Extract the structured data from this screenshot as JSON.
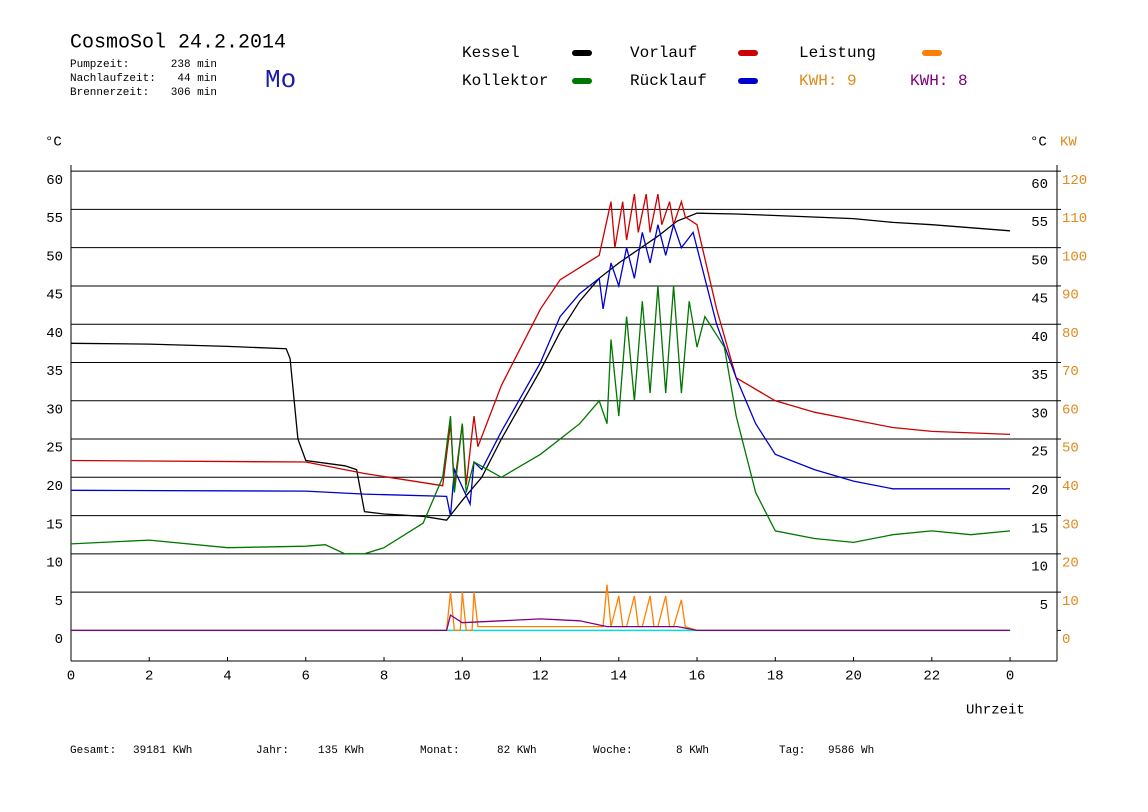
{
  "chart_data": {
    "type": "line",
    "title": "CosmoSol 24.2.2014",
    "day": "Mo",
    "stats": [
      {
        "label": "Pumpzeit:",
        "value": "238 min"
      },
      {
        "label": "Nachlaufzeit:",
        "value": "44 min"
      },
      {
        "label": "Brennerzeit:",
        "value": "306 min"
      }
    ],
    "kwh_labels": [
      {
        "text": "KWH: 9",
        "color": "#e08a1e"
      },
      {
        "text": "KWH: 8",
        "color": "#800080"
      }
    ],
    "y_unit": "°C",
    "y2_unit_c": "°C",
    "y2_unit": "KW",
    "x_label": "Uhrzeit",
    "totals": [
      {
        "label": "Gesamt:",
        "value": "39181 KWh"
      },
      {
        "label": "Jahr:",
        "value": "135 KWh"
      },
      {
        "label": "Monat:",
        "value": "82 KWh"
      },
      {
        "label": "Woche:",
        "value": "8 KWh"
      },
      {
        "label": "Tag:",
        "value": "9586 Wh"
      }
    ],
    "xlim": [
      0,
      25.2
    ],
    "xticks": [
      0,
      2,
      4,
      6,
      8,
      10,
      12,
      14,
      16,
      18,
      20,
      22,
      {
        "value": 24,
        "label": "0"
      }
    ],
    "ylim": [
      -4,
      60.8
    ],
    "yticks": [
      0,
      5,
      10,
      15,
      20,
      25,
      30,
      35,
      40,
      45,
      50,
      55,
      60
    ],
    "y2lim": [
      -8,
      121.6
    ],
    "y2ticks": [
      0,
      10,
      20,
      30,
      40,
      50,
      60,
      70,
      80,
      90,
      100,
      110,
      120
    ],
    "grid": true,
    "series": [
      {
        "name": "Kessel",
        "color": "#000000",
        "x": [
          0,
          2,
          4,
          5.5,
          5.6,
          5.8,
          6,
          7,
          7.3,
          7.5,
          8,
          9,
          9.6,
          10,
          10.5,
          11,
          12,
          12.5,
          13,
          13.5,
          14,
          15,
          15.5,
          16,
          17,
          18,
          20,
          21,
          22,
          24
        ],
        "values": [
          37.5,
          37.4,
          37.1,
          36.8,
          35.5,
          25,
          22.2,
          21.5,
          21,
          15.5,
          15.2,
          14.9,
          14.4,
          17,
          20,
          25,
          34,
          39,
          43,
          46,
          48,
          51.5,
          53.5,
          54.5,
          54.4,
          54.2,
          53.8,
          53.3,
          53,
          52.2
        ]
      },
      {
        "name": "Vorlauf",
        "color": "#cc0000",
        "x": [
          0,
          6,
          7.5,
          9.5,
          9.7,
          9.8,
          10,
          10.1,
          10.3,
          10.4,
          11,
          12,
          12.5,
          13.5,
          13.8,
          13.9,
          14.1,
          14.2,
          14.4,
          14.5,
          14.7,
          14.8,
          15,
          15.1,
          15.3,
          15.4,
          15.6,
          15.7,
          16,
          16.5,
          17,
          18,
          19,
          20,
          21,
          22,
          24
        ],
        "values": [
          22.2,
          22,
          20.5,
          18.9,
          27,
          19,
          27,
          19,
          28,
          24,
          32,
          42,
          45.8,
          49,
          56,
          50,
          56,
          51,
          57,
          52,
          57,
          52,
          57,
          53,
          56,
          53,
          56,
          54,
          53,
          42,
          33,
          30,
          28.5,
          27.5,
          26.5,
          26,
          25.6
        ]
      },
      {
        "name": "Rücklauf",
        "color": "#0000cc",
        "x": [
          0,
          6,
          7.5,
          9.6,
          9.7,
          9.8,
          10.2,
          10.3,
          10.5,
          11,
          12,
          12.5,
          13,
          13.5,
          13.6,
          13.8,
          14,
          14.2,
          14.4,
          14.6,
          14.8,
          15,
          15.2,
          15.4,
          15.6,
          15.9,
          16.5,
          17,
          17.5,
          18,
          19,
          20,
          21,
          24
        ],
        "values": [
          18.3,
          18.2,
          17.8,
          17.5,
          15,
          21,
          16.5,
          22,
          21,
          26,
          35,
          41,
          44,
          46,
          42,
          48,
          45,
          50,
          46,
          52,
          48,
          53,
          49,
          53,
          50,
          52,
          40,
          33,
          27,
          23,
          21,
          19.5,
          18.5,
          18.5
        ]
      },
      {
        "name": "Kollektor",
        "color": "#007700",
        "x": [
          0,
          2,
          4,
          6,
          6.5,
          7,
          7.5,
          8,
          9,
          9.5,
          9.7,
          9.8,
          10,
          10.1,
          10.3,
          11,
          12,
          13,
          13.5,
          13.7,
          13.8,
          14,
          14.2,
          14.4,
          14.6,
          14.8,
          15,
          15.2,
          15.4,
          15.6,
          15.8,
          16,
          16.2,
          16.7,
          17,
          17.5,
          18,
          19,
          20,
          21,
          22,
          23,
          24
        ],
        "values": [
          11.3,
          11.8,
          10.8,
          11,
          11.2,
          10,
          10,
          10.8,
          14,
          20,
          28,
          18,
          27,
          18,
          22,
          20,
          23,
          27,
          30,
          27,
          38,
          28,
          41,
          30,
          43,
          31,
          45,
          31,
          45,
          31,
          43,
          37,
          41,
          37,
          28,
          18,
          13,
          12,
          11.5,
          12.5,
          13,
          12.5,
          13
        ]
      },
      {
        "name": "Leistung",
        "color": "#ff8000",
        "axis": "y2",
        "x": [
          0,
          9.6,
          9.7,
          9.8,
          9.95,
          10,
          10.1,
          10.25,
          10.3,
          10.4,
          13.6,
          13.7,
          13.8,
          14,
          14.1,
          14.2,
          14.4,
          14.5,
          14.6,
          14.8,
          14.9,
          15,
          15.2,
          15.3,
          15.4,
          15.6,
          15.7,
          16,
          24
        ],
        "values": [
          0,
          0,
          10,
          0,
          0,
          10,
          0,
          0,
          10,
          1,
          1,
          12,
          1,
          9,
          1,
          1,
          9,
          1,
          1,
          9,
          1,
          1,
          9,
          1,
          1,
          8,
          1,
          0,
          0
        ]
      },
      {
        "color": "#800080",
        "axis": "y2",
        "x": [
          0,
          9.6,
          9.7,
          10,
          11,
          12,
          13,
          13.7,
          14,
          15.5,
          16,
          24
        ],
        "values": [
          0,
          0,
          4,
          2,
          2.5,
          3,
          2.5,
          1,
          1,
          1,
          0,
          0
        ]
      }
    ]
  }
}
